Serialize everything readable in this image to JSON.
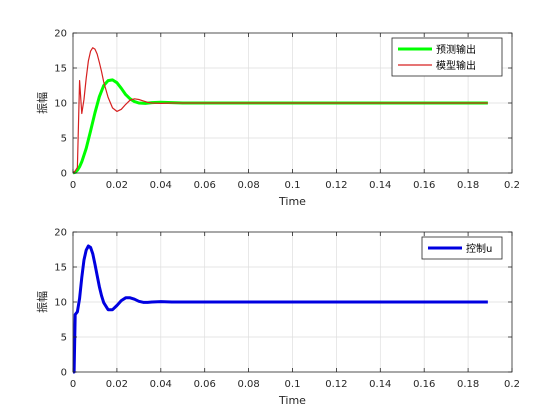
{
  "chart_data": [
    {
      "type": "line",
      "xlabel": "Time",
      "ylabel": "振幅",
      "xlim": [
        0,
        0.2
      ],
      "ylim": [
        0,
        20
      ],
      "xticks": [
        0,
        0.02,
        0.04,
        0.06,
        0.08,
        0.1,
        0.12,
        0.14,
        0.16,
        0.18,
        0.2
      ],
      "xtick_labels": [
        "0",
        "0.02",
        "0.04",
        "0.06",
        "0.08",
        "0.1",
        "0.12",
        "0.14",
        "0.16",
        "0.18",
        "0.2"
      ],
      "yticks": [
        0,
        5,
        10,
        15,
        20
      ],
      "ytick_labels": [
        "0",
        "5",
        "10",
        "15",
        "20"
      ],
      "grid": true,
      "legend_position": "top-right",
      "series": [
        {
          "name": "预测输出",
          "color": "#00ff00",
          "line_width": "thick",
          "x": [
            0,
            0.001,
            0.002,
            0.003,
            0.004,
            0.006,
            0.008,
            0.01,
            0.012,
            0.014,
            0.016,
            0.018,
            0.02,
            0.022,
            0.024,
            0.026,
            0.028,
            0.03,
            0.033,
            0.036,
            0.04,
            0.045,
            0.05,
            0.06,
            0.08,
            0.1,
            0.12,
            0.14,
            0.16,
            0.18,
            0.189
          ],
          "y": [
            0,
            0.1,
            0.4,
            0.9,
            1.6,
            3.5,
            6.0,
            8.6,
            10.9,
            12.5,
            13.2,
            13.3,
            12.9,
            12.1,
            11.2,
            10.6,
            10.2,
            10.0,
            9.95,
            10.05,
            10.1,
            10.05,
            10.0,
            10.0,
            10.0,
            10.0,
            10.0,
            10.0,
            10.0,
            10.0,
            10.0
          ]
        },
        {
          "name": "模型输出",
          "color": "#d62020",
          "line_width": "thin",
          "x": [
            0,
            0.001,
            0.002,
            0.003,
            0.004,
            0.005,
            0.006,
            0.007,
            0.008,
            0.009,
            0.01,
            0.011,
            0.012,
            0.013,
            0.014,
            0.016,
            0.018,
            0.02,
            0.022,
            0.024,
            0.026,
            0.028,
            0.03,
            0.032,
            0.034,
            0.036,
            0.04,
            0.045,
            0.05,
            0.06,
            0.08,
            0.1,
            0.12,
            0.14,
            0.16,
            0.18,
            0.189
          ],
          "y": [
            0,
            0.3,
            0.8,
            13.2,
            8.5,
            10.5,
            13.5,
            16.0,
            17.4,
            17.9,
            17.7,
            17.0,
            15.8,
            14.5,
            13.0,
            10.8,
            9.3,
            8.8,
            9.1,
            9.8,
            10.4,
            10.6,
            10.5,
            10.3,
            10.1,
            10.0,
            9.95,
            10.0,
            10.0,
            10.0,
            10.0,
            10.0,
            10.0,
            10.0,
            10.0,
            10.0,
            10.0
          ]
        }
      ]
    },
    {
      "type": "line",
      "xlabel": "Time",
      "ylabel": "振幅",
      "xlim": [
        0,
        0.2
      ],
      "ylim": [
        0,
        20
      ],
      "xticks": [
        0,
        0.02,
        0.04,
        0.06,
        0.08,
        0.1,
        0.12,
        0.14,
        0.16,
        0.18,
        0.2
      ],
      "xtick_labels": [
        "0",
        "0.02",
        "0.04",
        "0.06",
        "0.08",
        "0.1",
        "0.12",
        "0.14",
        "0.16",
        "0.18",
        "0.2"
      ],
      "yticks": [
        0,
        5,
        10,
        15,
        20
      ],
      "ytick_labels": [
        "0",
        "5",
        "10",
        "15",
        "20"
      ],
      "grid": true,
      "legend_position": "top-right",
      "series": [
        {
          "name": "控制u",
          "color": "#0000e0",
          "line_width": "thick",
          "x": [
            0,
            0.0005,
            0.001,
            0.002,
            0.003,
            0.004,
            0.005,
            0.006,
            0.007,
            0.008,
            0.009,
            0.01,
            0.011,
            0.012,
            0.013,
            0.014,
            0.016,
            0.018,
            0.02,
            0.022,
            0.024,
            0.026,
            0.028,
            0.03,
            0.032,
            0.034,
            0.036,
            0.04,
            0.045,
            0.05,
            0.06,
            0.08,
            0.1,
            0.12,
            0.14,
            0.16,
            0.18,
            0.189
          ],
          "y": [
            0,
            0,
            8.2,
            8.6,
            10.5,
            13.5,
            16.0,
            17.4,
            18.0,
            17.8,
            16.9,
            15.4,
            13.8,
            12.2,
            10.9,
            9.9,
            8.9,
            8.9,
            9.5,
            10.2,
            10.6,
            10.6,
            10.4,
            10.1,
            9.95,
            9.95,
            10.0,
            10.05,
            10.0,
            10.0,
            10.0,
            10.0,
            10.0,
            10.0,
            10.0,
            10.0,
            10.0,
            10.0
          ]
        }
      ]
    }
  ]
}
